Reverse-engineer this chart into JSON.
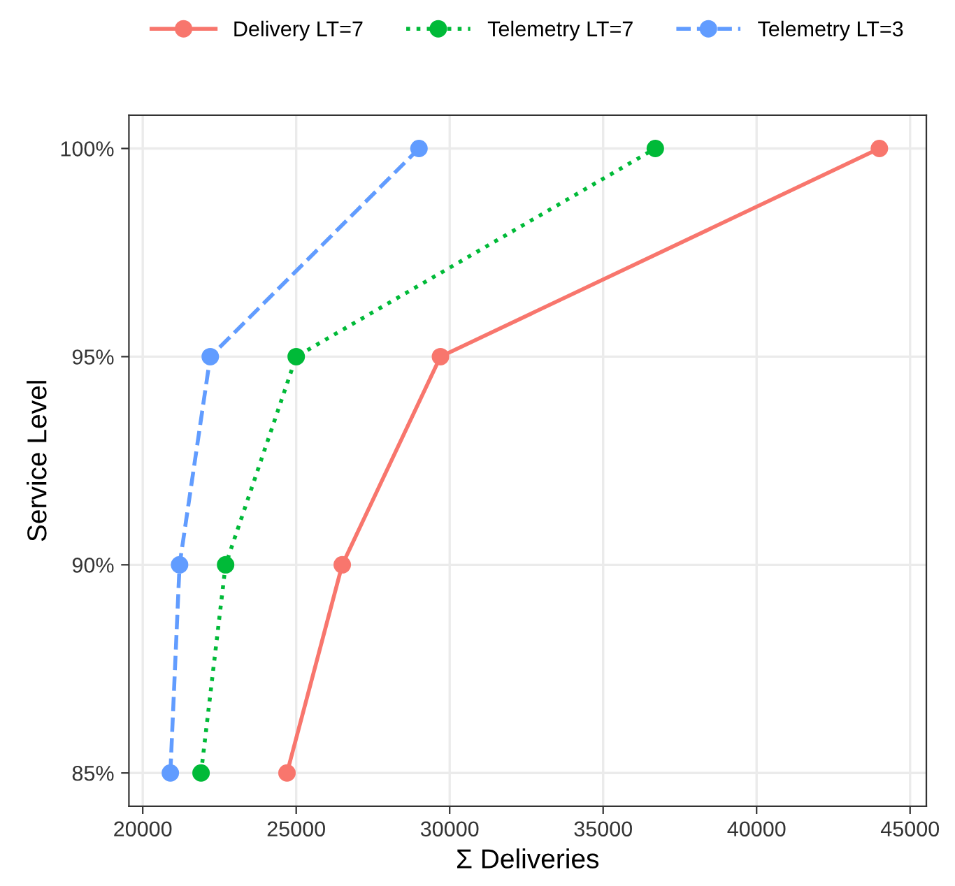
{
  "chart_data": {
    "type": "line",
    "xlabel": "Σ Deliveries",
    "ylabel": "Service Level",
    "series": [
      {
        "name": "Delivery LT=7",
        "color": "#f8766d",
        "line_style": "solid",
        "x": [
          24700,
          26500,
          29700,
          44000
        ],
        "values": [
          85,
          90,
          95,
          100
        ]
      },
      {
        "name": "Telemetry LT=7",
        "color": "#00ba38",
        "line_style": "dotted",
        "x": [
          21900,
          22700,
          25000,
          36700
        ],
        "values": [
          85,
          90,
          95,
          100
        ]
      },
      {
        "name": "Telemetry LT=3",
        "color": "#619cff",
        "line_style": "dashed",
        "x": [
          20900,
          21200,
          22200,
          29000
        ],
        "values": [
          85,
          90,
          95,
          100
        ]
      }
    ],
    "xlim": [
      19550,
      45530
    ],
    "xticks": [
      20000,
      25000,
      30000,
      35000,
      40000,
      45000
    ],
    "ylim": [
      84.2,
      100.8
    ],
    "yticks": [
      {
        "value": 85,
        "label": "85%"
      },
      {
        "value": 90,
        "label": "90%"
      },
      {
        "value": 95,
        "label": "95%"
      },
      {
        "value": 100,
        "label": "100%"
      }
    ],
    "grid": true,
    "legend": "top",
    "marker": "circle"
  }
}
